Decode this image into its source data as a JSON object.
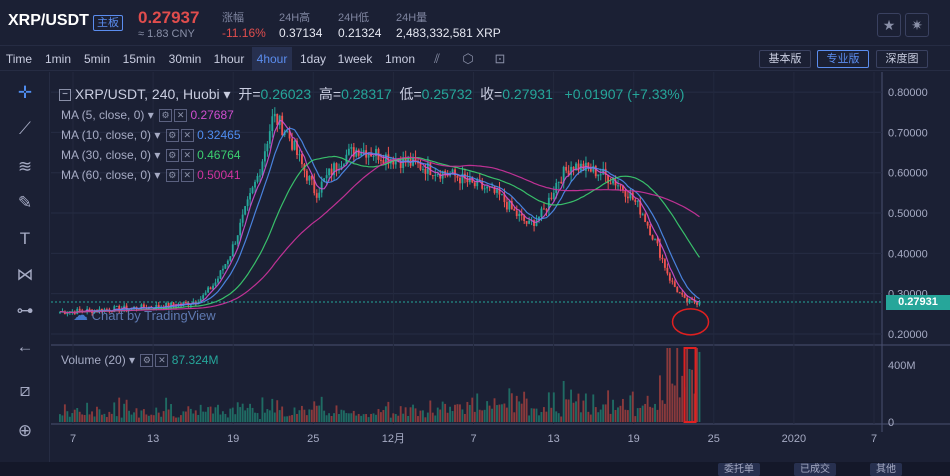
{
  "header": {
    "pair": "XRP/USDT",
    "badge": "主板",
    "price": "0.27937",
    "cny": "≈ 1.83 CNY",
    "stats": [
      {
        "label": "涨幅",
        "value": "-11.16%",
        "red": true
      },
      {
        "label": "24H高",
        "value": "0.37134",
        "red": false
      },
      {
        "label": "24H低",
        "value": "0.21324",
        "red": false
      },
      {
        "label": "24H量",
        "value": "2,483,332,581 XRP",
        "red": false
      }
    ],
    "star_icon": "star-icon",
    "settings_icon": "gear-icon"
  },
  "toolbar": {
    "timeframes": [
      "Time",
      "1min",
      "5min",
      "15min",
      "30min",
      "1hour",
      "4hour",
      "1day",
      "1week",
      "1mon"
    ],
    "active_timeframe": "4hour",
    "icons": [
      "indicator-icon",
      "settings-icon",
      "screenshot-icon"
    ],
    "versions": [
      "基本版",
      "专业版",
      "深度图"
    ],
    "active_version": "专业版"
  },
  "chart": {
    "title": "XRP/USDT, 240, Huobi",
    "open_label": "开=",
    "open": "0.26023",
    "high_label": "高=",
    "high": "0.28317",
    "low_label": "低=",
    "low": "0.25732",
    "close_label": "收=",
    "close": "0.27931",
    "change": "+0.01907 (+7.33%)",
    "ma": [
      {
        "label": "MA (5, close, 0)",
        "value": "0.27687",
        "color": "#d04fd0"
      },
      {
        "label": "MA (10, close, 0)",
        "value": "0.32465",
        "color": "#4f8df0"
      },
      {
        "label": "MA (30, close, 0)",
        "value": "0.46764",
        "color": "#3cd070"
      },
      {
        "label": "MA (60, close, 0)",
        "value": "0.50041",
        "color": "#d0339f"
      }
    ],
    "volume_label": "Volume (20)",
    "volume_value": "87.324M",
    "watermark": "Chart by TradingView",
    "current_price_label": "0.27931"
  },
  "chart_data": {
    "type": "line",
    "price_axis": [
      "0.80000",
      "0.70000",
      "0.60000",
      "0.50000",
      "0.40000",
      "0.30000",
      "0.20000"
    ],
    "price_axis_values": [
      0.8,
      0.7,
      0.6,
      0.5,
      0.4,
      0.3,
      0.2
    ],
    "ylim": [
      0.18,
      0.83
    ],
    "volume_axis": [
      "400M",
      "0"
    ],
    "volume_axis_values": [
      400,
      0
    ],
    "x_ticks": [
      "7",
      "13",
      "19",
      "25",
      "12月",
      "7",
      "13",
      "19",
      "25",
      "2020",
      "7"
    ],
    "x_tick_positions": [
      0,
      6,
      12,
      18,
      24,
      30,
      36,
      42,
      48,
      54,
      60
    ],
    "close_series": [
      0.255,
      0.256,
      0.258,
      0.26,
      0.262,
      0.264,
      0.266,
      0.268,
      0.272,
      0.276,
      0.29,
      0.33,
      0.4,
      0.5,
      0.6,
      0.74,
      0.7,
      0.62,
      0.55,
      0.6,
      0.64,
      0.66,
      0.65,
      0.64,
      0.63,
      0.62,
      0.61,
      0.6,
      0.59,
      0.57,
      0.56,
      0.54,
      0.5,
      0.47,
      0.5,
      0.58,
      0.62,
      0.61,
      0.6,
      0.58,
      0.55,
      0.5,
      0.42,
      0.33,
      0.28,
      0.27931
    ],
    "current_price": 0.27931
  },
  "left_tools": [
    "crosshair-icon",
    "trendline-icon",
    "fib-icon",
    "brush-icon",
    "text-icon",
    "pattern-icon",
    "measure-icon",
    "back-arrow-icon",
    "ruler-icon",
    "zoom-icon"
  ],
  "bottom": {
    "tabs": [
      "委托单",
      "已成交",
      "其他"
    ]
  }
}
